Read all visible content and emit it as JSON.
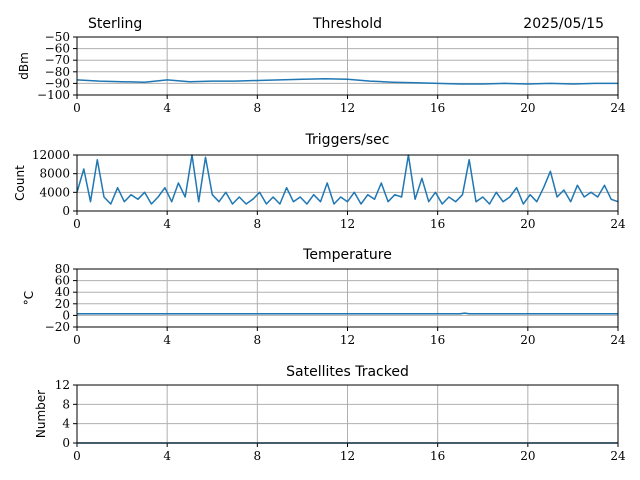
{
  "header": {
    "station": "Sterling",
    "date": "2025/05/15"
  },
  "colors": {
    "series": "#1f77b4",
    "grid": "#b0b0b0"
  },
  "chart_data": [
    {
      "type": "line",
      "title": "Threshold",
      "ylabel": "dBm",
      "xlim": [
        0,
        24
      ],
      "ylim": [
        -100,
        -50
      ],
      "xticks": [
        "0",
        "4",
        "8",
        "12",
        "16",
        "20",
        "24"
      ],
      "yticks": [
        "−50",
        "−60",
        "−70",
        "−80",
        "−90",
        "−100"
      ],
      "grid": true,
      "x": [
        0,
        1,
        2,
        3,
        4,
        5,
        6,
        7,
        8,
        9,
        10,
        11,
        12,
        13,
        14,
        15,
        16,
        17,
        18,
        19,
        20,
        21,
        22,
        23,
        24
      ],
      "y": [
        -87,
        -88,
        -88.5,
        -89,
        -87,
        -88.5,
        -88,
        -88,
        -87.5,
        -87,
        -86.5,
        -86,
        -86.5,
        -88,
        -89,
        -89.5,
        -90,
        -90.5,
        -90.5,
        -90,
        -90.5,
        -90,
        -90.5,
        -90,
        -90
      ]
    },
    {
      "type": "line",
      "title": "Triggers/sec",
      "ylabel": "Count",
      "xlim": [
        0,
        24
      ],
      "ylim": [
        0,
        12000
      ],
      "xticks": [
        "0",
        "4",
        "8",
        "12",
        "16",
        "20",
        "24"
      ],
      "yticks": [
        "12000",
        "8000",
        "4000",
        "0"
      ],
      "grid": true,
      "x": [
        0,
        0.3,
        0.6,
        0.9,
        1.2,
        1.5,
        1.8,
        2.1,
        2.4,
        2.7,
        3.0,
        3.3,
        3.6,
        3.9,
        4.2,
        4.5,
        4.8,
        5.1,
        5.4,
        5.7,
        6.0,
        6.3,
        6.6,
        6.9,
        7.2,
        7.5,
        7.8,
        8.1,
        8.4,
        8.7,
        9.0,
        9.3,
        9.6,
        9.9,
        10.2,
        10.5,
        10.8,
        11.1,
        11.4,
        11.7,
        12.0,
        12.3,
        12.6,
        12.9,
        13.2,
        13.5,
        13.8,
        14.1,
        14.4,
        14.7,
        15.0,
        15.3,
        15.6,
        15.9,
        16.2,
        16.5,
        16.8,
        17.1,
        17.4,
        17.7,
        18.0,
        18.3,
        18.6,
        18.9,
        19.2,
        19.5,
        19.8,
        20.1,
        20.4,
        20.7,
        21.0,
        21.3,
        21.6,
        21.9,
        22.2,
        22.5,
        22.8,
        23.1,
        23.4,
        23.7,
        24.0
      ],
      "y": [
        4000,
        9000,
        2000,
        11000,
        3000,
        1500,
        5000,
        2000,
        3500,
        2500,
        4000,
        1500,
        3000,
        5000,
        2000,
        6000,
        3000,
        12000,
        2000,
        11500,
        3500,
        2000,
        4000,
        1500,
        3000,
        1500,
        2500,
        4000,
        1500,
        3000,
        1500,
        5000,
        2000,
        3000,
        1500,
        3500,
        2000,
        6000,
        1500,
        3000,
        2000,
        4000,
        1500,
        3500,
        2500,
        6000,
        2000,
        3500,
        3000,
        12000,
        2500,
        7000,
        2000,
        4000,
        1500,
        3000,
        2000,
        3500,
        11000,
        2000,
        3000,
        1500,
        4000,
        2000,
        3000,
        5000,
        1500,
        3500,
        2000,
        5000,
        8500,
        3000,
        4500,
        2000,
        5500,
        3000,
        4000,
        3000,
        5500,
        2500,
        2000
      ]
    },
    {
      "type": "line",
      "title": "Temperature",
      "ylabel": "°C",
      "xlim": [
        0,
        24
      ],
      "ylim": [
        -20,
        80
      ],
      "xticks": [
        "0",
        "4",
        "8",
        "12",
        "16",
        "20",
        "24"
      ],
      "yticks": [
        "80",
        "60",
        "40",
        "20",
        "0",
        "−20"
      ],
      "grid": true,
      "x": [
        0,
        4,
        8,
        12,
        16,
        17,
        17.2,
        17.4,
        20,
        24
      ],
      "y": [
        3,
        3,
        3,
        3,
        3,
        3,
        4,
        3,
        3,
        3
      ]
    },
    {
      "type": "line",
      "title": "Satellites Tracked",
      "ylabel": "Number",
      "xlim": [
        0,
        24
      ],
      "ylim": [
        0,
        12
      ],
      "xticks": [
        "0",
        "4",
        "8",
        "12",
        "16",
        "20",
        "24"
      ],
      "yticks": [
        "12",
        "8",
        "4",
        "0"
      ],
      "grid": true,
      "x": [
        0,
        24
      ],
      "y": [
        0,
        0
      ]
    }
  ]
}
